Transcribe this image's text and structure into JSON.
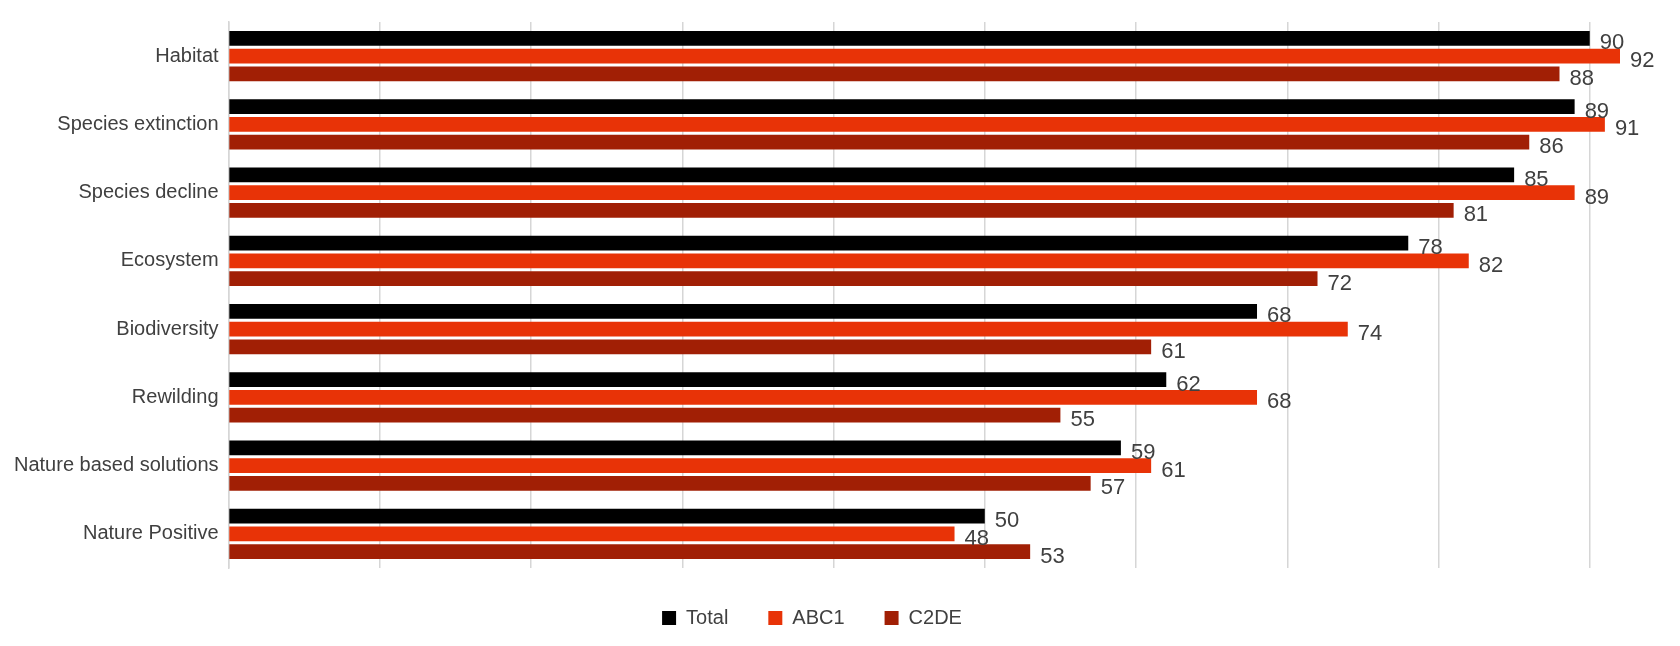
{
  "chart_data": {
    "type": "bar",
    "orientation": "horizontal",
    "categories": [
      "Habitat",
      "Species extinction",
      "Species decline",
      "Ecosystem",
      "Biodiversity",
      "Rewilding",
      "Nature based solutions",
      "Nature Positive"
    ],
    "series": [
      {
        "name": "Total",
        "color": "#000000",
        "values": [
          90,
          89,
          85,
          78,
          68,
          62,
          59,
          50
        ]
      },
      {
        "name": "ABC1",
        "color": "#e83307",
        "values": [
          92,
          91,
          89,
          82,
          74,
          68,
          61,
          48
        ]
      },
      {
        "name": "C2DE",
        "color": "#a11f05",
        "values": [
          88,
          86,
          81,
          72,
          61,
          55,
          57,
          53
        ]
      }
    ],
    "xlim": [
      0,
      92
    ],
    "xticks": [
      {
        "value": 0,
        "label": null
      },
      {
        "value": 10,
        "label": null
      },
      {
        "value": 20,
        "label": null
      },
      {
        "value": 30,
        "label": null
      },
      {
        "value": 40,
        "label": null
      },
      {
        "value": 50,
        "label": null
      },
      {
        "value": 60,
        "label": null
      },
      {
        "value": 70,
        "label": null
      },
      {
        "value": 80,
        "label": null
      },
      {
        "value": 90,
        "label": null
      }
    ],
    "grid": "x",
    "legend": "bottom",
    "tick_labels": "y",
    "data_labels": true
  }
}
